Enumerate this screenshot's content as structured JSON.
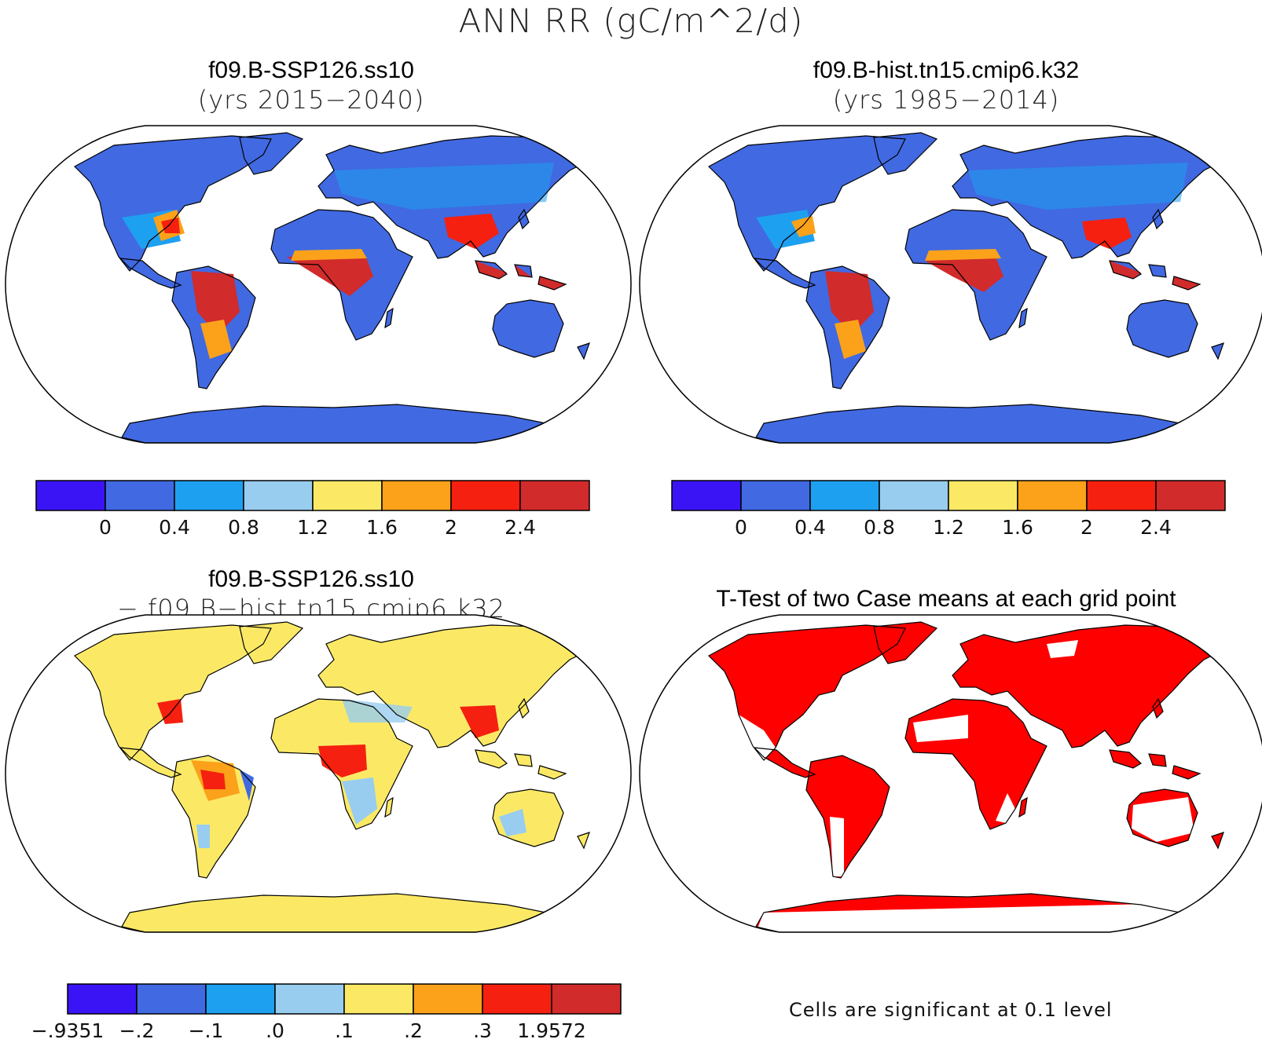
{
  "title": "ANN RR (gC/m^2/d)",
  "colors": {
    "scale": [
      "#3a14f5",
      "#4169e1",
      "#1ea0f0",
      "#98cdf0",
      "#fbe966",
      "#fba21a",
      "#f5200f",
      "#d12b2b"
    ],
    "land_sig": "#ff0000",
    "ocean": "#ffffff",
    "coast": "#000000"
  },
  "panels": [
    {
      "title": "f09.B-SSP126.ss10",
      "subtitle": "(yrs 2015−2040)",
      "map": "ANN RR field, case f09.B-SSP126.ss10",
      "colorbar_labels": [
        "0",
        "0.4",
        "0.8",
        "1.2",
        "1.6",
        "2",
        "2.4"
      ]
    },
    {
      "title": "f09.B-hist.tn15.cmip6.k32",
      "subtitle": "(yrs 1985−2014)",
      "map": "ANN RR field, case f09.B-hist.tn15.cmip6.k32",
      "colorbar_labels": [
        "0",
        "0.4",
        "0.8",
        "1.2",
        "1.6",
        "2",
        "2.4"
      ]
    },
    {
      "title": "f09.B-SSP126.ss10",
      "subtitle": "− f09.B−hist.tn15.cmip6.k32",
      "map": "Difference field",
      "colorbar_labels": [
        "−.9351",
        "−.2",
        "−.1",
        ".0",
        ".1",
        ".2",
        ".3",
        "1.9572"
      ]
    },
    {
      "title": "T-Test of two Case means at each grid point",
      "map": "Significance mask",
      "note": "Cells are significant at 0.1 level"
    }
  ]
}
